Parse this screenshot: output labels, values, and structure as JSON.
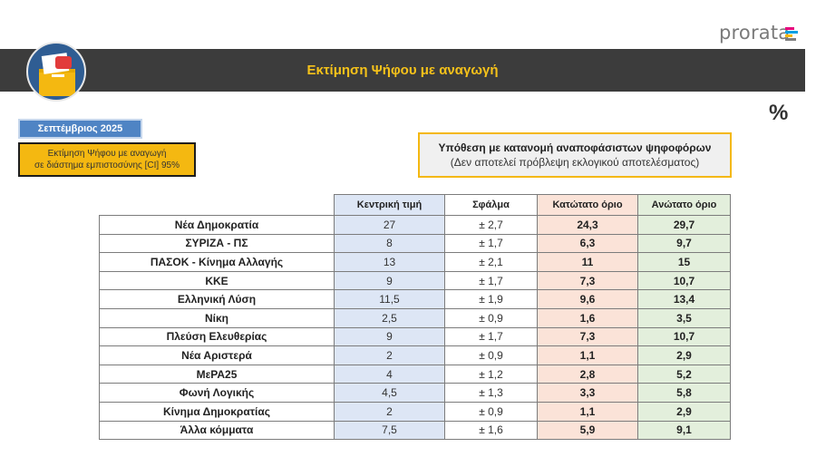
{
  "brand": {
    "logo_text": "prorata",
    "bar_colors": [
      "#e5007d",
      "#00a0e3",
      "#f4b811",
      "#7f7f7f"
    ]
  },
  "header": {
    "title": "Εκτίμηση Ψήφου με αναγωγή",
    "title_color": "#f6c21a",
    "background": "#3c3c3c"
  },
  "icons": {
    "ballot": "ballot-box-icon",
    "percent": "percent-icon",
    "percent_glyph": "%"
  },
  "date_label": "Σεπτέμβριος 2025",
  "ci_note": {
    "line1": "Εκτίμηση Ψήφου με αναγωγή",
    "line2": "σε διάστημα εμπιστοσύνης [CI] 95%"
  },
  "assumption": {
    "line1": "Υπόθεση με κατανομή αναποφάσιστων ψηφοφόρων",
    "line2": "(Δεν αποτελεί πρόβλεψη εκλογικού αποτελέσματος)"
  },
  "table": {
    "columns": [
      "Κεντρική τιμή",
      "Σφάλμα",
      "Κατώτατο όριο",
      "Ανώτατο όριο"
    ],
    "rows": [
      {
        "party": "Νέα Δημοκρατία",
        "central": "27",
        "error": "± 2,7",
        "lower": "24,3",
        "upper": "29,7"
      },
      {
        "party": "ΣΥΡΙΖΑ - ΠΣ",
        "central": "8",
        "error": "± 1,7",
        "lower": "6,3",
        "upper": "9,7"
      },
      {
        "party": "ΠΑΣΟΚ - Κίνημα Αλλαγής",
        "central": "13",
        "error": "± 2,1",
        "lower": "11",
        "upper": "15"
      },
      {
        "party": "ΚΚΕ",
        "central": "9",
        "error": "± 1,7",
        "lower": "7,3",
        "upper": "10,7"
      },
      {
        "party": "Ελληνική Λύση",
        "central": "11,5",
        "error": "± 1,9",
        "lower": "9,6",
        "upper": "13,4"
      },
      {
        "party": "Νίκη",
        "central": "2,5",
        "error": "± 0,9",
        "lower": "1,6",
        "upper": "3,5"
      },
      {
        "party": "Πλεύση Ελευθερίας",
        "central": "9",
        "error": "± 1,7",
        "lower": "7,3",
        "upper": "10,7"
      },
      {
        "party": "Νέα Αριστερά",
        "central": "2",
        "error": "± 0,9",
        "lower": "1,1",
        "upper": "2,9"
      },
      {
        "party": "ΜεΡΑ25",
        "central": "4",
        "error": "± 1,2",
        "lower": "2,8",
        "upper": "5,2"
      },
      {
        "party": "Φωνή Λογικής",
        "central": "4,5",
        "error": "± 1,3",
        "lower": "3,3",
        "upper": "5,8"
      },
      {
        "party": "Κίνημα Δημοκρατίας",
        "central": "2",
        "error": "± 0,9",
        "lower": "1,1",
        "upper": "2,9"
      },
      {
        "party": "Άλλα κόμματα",
        "central": "7,5",
        "error": "± 1,6",
        "lower": "5,9",
        "upper": "9,1"
      }
    ]
  }
}
